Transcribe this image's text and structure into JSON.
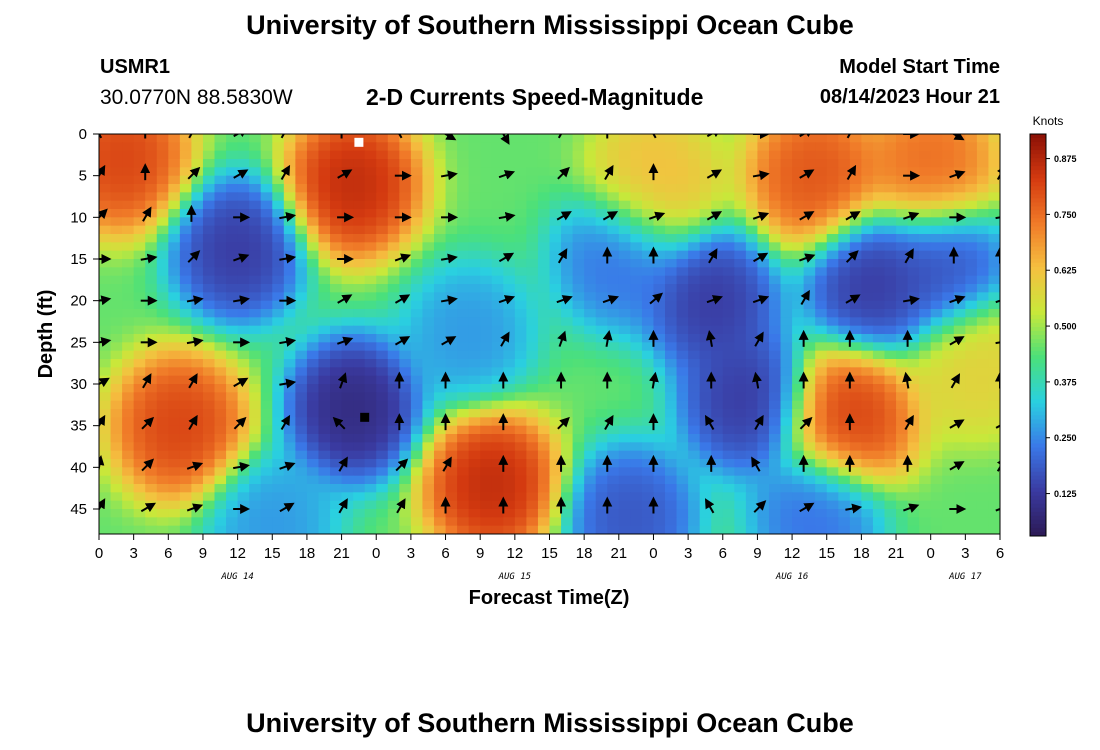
{
  "header": {
    "title": "University of Southern Mississippi Ocean Cube",
    "station_id": "USMR1",
    "station_coords": "30.0770N  88.5830W",
    "chart_title": "2-D Currents Speed-Magnitude",
    "model_label": "Model Start Time",
    "model_time": "08/14/2023 Hour 21"
  },
  "footer": {
    "title": "University of Southern Mississippi Ocean Cube"
  },
  "chart_data": {
    "type": "heatmap",
    "title": "2-D Currents Speed-Magnitude",
    "xlabel": "Forecast Time(Z)",
    "ylabel": "Depth (ft)",
    "x_ticks": [
      "0",
      "3",
      "6",
      "9",
      "12",
      "15",
      "18",
      "21",
      "0",
      "3",
      "6",
      "9",
      "12",
      "15",
      "18",
      "21",
      "0",
      "3",
      "6",
      "9",
      "12",
      "15",
      "18",
      "21",
      "0",
      "3",
      "6"
    ],
    "x_range_hours": [
      0,
      78
    ],
    "day_labels": [
      {
        "text": "AUG 14",
        "hour": 12
      },
      {
        "text": "AUG 15",
        "hour": 36
      },
      {
        "text": "AUG 16",
        "hour": 60
      },
      {
        "text": "AUG 17",
        "hour": 75
      }
    ],
    "y_ticks": [
      0,
      5,
      10,
      15,
      20,
      25,
      30,
      35,
      40,
      45
    ],
    "ylim": [
      48,
      0
    ],
    "colorbar": {
      "unit": "Knots",
      "ticks": [
        "0.875",
        "0.750",
        "0.625",
        "0.500",
        "0.375",
        "0.250",
        "0.125"
      ],
      "tick_values": [
        0.875,
        0.75,
        0.625,
        0.5,
        0.375,
        0.25,
        0.125
      ],
      "range": [
        0.03,
        0.93
      ],
      "colors": [
        "#2c1a55",
        "#3a3aa0",
        "#3a78e8",
        "#2ad0e0",
        "#4be07a",
        "#c8e83a",
        "#f5c040",
        "#f07a28",
        "#d43a10",
        "#8a1006"
      ]
    },
    "speed_anomalies": [
      {
        "hour": 2,
        "depth": 3,
        "speed": 0.85
      },
      {
        "hour": 22,
        "depth": 6,
        "speed": 0.9
      },
      {
        "hour": 48,
        "depth": 6,
        "speed": 0.65
      },
      {
        "hour": 62,
        "depth": 5,
        "speed": 0.82
      },
      {
        "hour": 72,
        "depth": 4,
        "speed": 0.78
      },
      {
        "hour": 12,
        "depth": 14,
        "speed": 0.1
      },
      {
        "hour": 22,
        "depth": 33,
        "speed": 0.05
      },
      {
        "hour": 45,
        "depth": 15,
        "speed": 0.2
      },
      {
        "hour": 53,
        "depth": 20,
        "speed": 0.1
      },
      {
        "hour": 56,
        "depth": 32,
        "speed": 0.1
      },
      {
        "hour": 67,
        "depth": 18,
        "speed": 0.1
      },
      {
        "hour": 73,
        "depth": 16,
        "speed": 0.15
      },
      {
        "hour": 7,
        "depth": 35,
        "speed": 0.85
      },
      {
        "hour": 34,
        "depth": 42,
        "speed": 0.9
      },
      {
        "hour": 65,
        "depth": 34,
        "speed": 0.85
      },
      {
        "hour": 32,
        "depth": 24,
        "speed": 0.25
      },
      {
        "hour": 62,
        "depth": 46,
        "speed": 0.2
      },
      {
        "hour": 46,
        "depth": 46,
        "speed": 0.15
      },
      {
        "hour": 15,
        "depth": 47,
        "speed": 0.25
      },
      {
        "hour": 76,
        "depth": 28,
        "speed": 0.6
      }
    ],
    "speed_base": 0.45,
    "arrow_hours": [
      0,
      4,
      8,
      12,
      16,
      21,
      26,
      30,
      35,
      40,
      44,
      48,
      53,
      57,
      61,
      65,
      70,
      74,
      78
    ],
    "arrow_depths": [
      0,
      5,
      10,
      15,
      20,
      25,
      30,
      35,
      40,
      45
    ],
    "arrow_directions_deg": [
      [
        -120,
        -90,
        -60,
        -30,
        -60,
        -90,
        -120,
        30,
        60,
        -60,
        -90,
        -120,
        -30,
        0,
        -30,
        -60,
        0,
        30,
        -120
      ],
      [
        -60,
        -90,
        -45,
        -30,
        -60,
        -30,
        0,
        -10,
        -20,
        -45,
        -60,
        -90,
        -30,
        -10,
        -30,
        -60,
        0,
        -20,
        -60
      ],
      [
        -45,
        -60,
        -90,
        0,
        -10,
        0,
        0,
        0,
        -10,
        -30,
        -30,
        -20,
        -30,
        -20,
        -30,
        -30,
        -20,
        0,
        -10
      ],
      [
        0,
        -10,
        -45,
        -20,
        -10,
        0,
        -20,
        -10,
        -30,
        -60,
        -90,
        -90,
        -60,
        -30,
        -20,
        -45,
        -60,
        -90,
        -90
      ],
      [
        -10,
        0,
        -10,
        -10,
        0,
        -30,
        -30,
        -10,
        -20,
        -20,
        -20,
        -40,
        -20,
        -20,
        -60,
        -30,
        -10,
        -20,
        -20
      ],
      [
        -10,
        0,
        -10,
        0,
        -10,
        -20,
        -30,
        -30,
        -60,
        -70,
        -80,
        -90,
        -100,
        -60,
        -90,
        -90,
        -90,
        -30,
        -10
      ],
      [
        -30,
        -60,
        -60,
        -30,
        -10,
        -70,
        -90,
        -90,
        -90,
        -90,
        -90,
        -80,
        -90,
        -100,
        -90,
        -90,
        -100,
        -60,
        -90
      ],
      [
        -60,
        -45,
        -60,
        -45,
        -60,
        -135,
        -90,
        -90,
        -90,
        -45,
        -60,
        -90,
        -120,
        -60,
        -45,
        -90,
        -60,
        -30,
        -30
      ],
      [
        -80,
        -45,
        -20,
        -10,
        -20,
        -60,
        -45,
        -60,
        -90,
        -90,
        -90,
        -90,
        -90,
        -120,
        -90,
        -90,
        -90,
        -30,
        -60
      ],
      [
        -60,
        -30,
        -20,
        0,
        -30,
        -60,
        -60,
        -90,
        -90,
        -90,
        -90,
        -90,
        -120,
        -45,
        -30,
        -10,
        -20,
        0,
        -20
      ]
    ],
    "markers": [
      {
        "hour": 22.5,
        "depth": 1,
        "color": "#ffffff"
      },
      {
        "hour": 23,
        "depth": 34,
        "color": "#000000"
      }
    ]
  }
}
